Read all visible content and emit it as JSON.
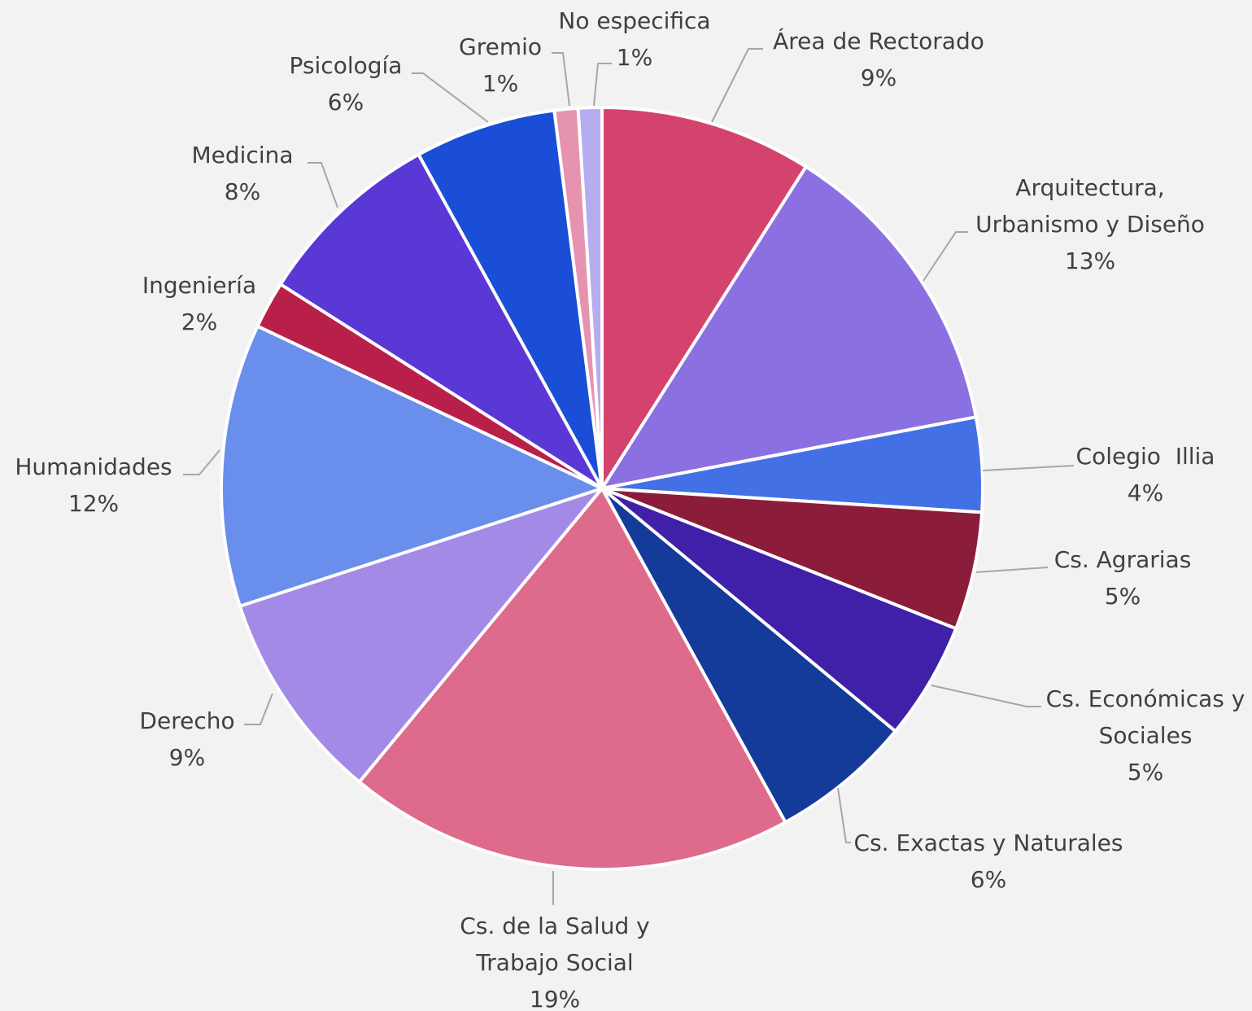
{
  "chart_data": {
    "type": "pie",
    "categories": [
      "Área de Rectorado",
      "Arquitectura,\nUrbanismo y Diseño",
      "Colegio  Illia",
      "Cs. Agrarias",
      "Cs. Económicas y\nSociales",
      "Cs. Exactas y Naturales",
      "Cs. de la Salud y\nTrabajo Social",
      "Derecho",
      "Humanidades",
      "Ingeniería",
      "Medicina",
      "Psicología",
      "Gremio",
      "No especifica"
    ],
    "values": [
      9,
      13,
      4,
      5,
      5,
      6,
      19,
      9,
      12,
      2,
      8,
      6,
      1,
      1
    ],
    "value_labels": [
      "9%",
      "13%",
      "4%",
      "5%",
      "5%",
      "6%",
      "19%",
      "9%",
      "12%",
      "2%",
      "8%",
      "6%",
      "1%",
      "1%"
    ],
    "colors": [
      "#d4436e",
      "#8b70e2",
      "#4470e6",
      "#8b1d3b",
      "#4020a8",
      "#143a9a",
      "#de6a8c",
      "#a28ae6",
      "#6a8eec",
      "#b8204a",
      "#5a38d6",
      "#1a4ed6",
      "#e693b0",
      "#b6acf0"
    ]
  }
}
